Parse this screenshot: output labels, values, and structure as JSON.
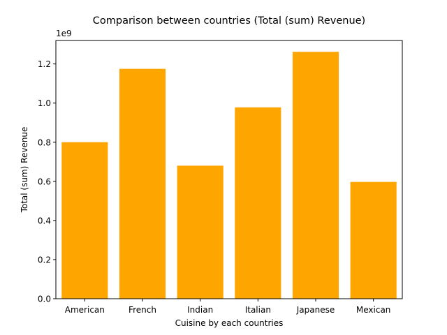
{
  "chart_data": {
    "type": "bar",
    "title": "Comparison between countries (Total (sum) Revenue)",
    "xlabel": "Cuisine by each countries",
    "ylabel": "Total (sum) Revenue",
    "offset_label": "1e9",
    "categories": [
      "American",
      "French",
      "Indian",
      "Italian",
      "Japanese",
      "Mexican"
    ],
    "values": [
      800000000,
      1175000000,
      680000000,
      978000000,
      1262000000,
      597000000
    ],
    "ylim": [
      0,
      1320000000
    ],
    "yticks": [
      0,
      200000000,
      400000000,
      600000000,
      800000000,
      1000000000,
      1200000000
    ],
    "ytick_labels": [
      "0.0",
      "0.2",
      "0.4",
      "0.6",
      "0.8",
      "1.0",
      "1.2"
    ],
    "bar_color": "#ffa500",
    "grid": false,
    "legend": "none"
  }
}
